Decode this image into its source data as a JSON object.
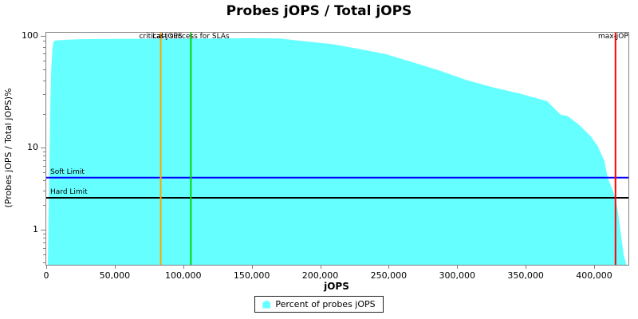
{
  "chart_data": {
    "type": "area",
    "title": "Probes jOPS / Total jOPS",
    "xlabel": "jOPS",
    "ylabel": "(Probes jOPS / Total jOPS)%",
    "x_axis": {
      "min": 0,
      "max": 424000,
      "scale": "linear",
      "ticks": [
        {
          "value": 0,
          "label": "0"
        },
        {
          "value": 50000,
          "label": "50,000"
        },
        {
          "value": 100000,
          "label": "100,000"
        },
        {
          "value": 150000,
          "label": "150,000"
        },
        {
          "value": 200000,
          "label": "200,000"
        },
        {
          "value": 250000,
          "label": "250,000"
        },
        {
          "value": 300000,
          "label": "300,000"
        },
        {
          "value": 350000,
          "label": "350,000"
        },
        {
          "value": 400000,
          "label": "400,000"
        }
      ]
    },
    "y_axis": {
      "min": 0.38,
      "max": 110,
      "scale": "log",
      "ticks": [
        {
          "value": 100,
          "label": "100"
        },
        {
          "value": 10,
          "label": "10"
        },
        {
          "value": 1,
          "label": "1"
        }
      ],
      "minor_ticks": [
        90,
        80,
        70,
        60,
        50,
        40,
        30,
        20,
        9,
        8,
        7,
        6,
        5,
        4,
        3,
        2,
        0.9,
        0.8,
        0.7,
        0.6,
        0.5,
        0.4
      ]
    },
    "series": [
      {
        "name": "Percent of probes jOPS",
        "color": "#66FFFF",
        "points": [
          [
            600,
            0.4
          ],
          [
            1200,
            2
          ],
          [
            1800,
            8
          ],
          [
            2400,
            25
          ],
          [
            3000,
            50
          ],
          [
            3800,
            75
          ],
          [
            4600,
            90
          ],
          [
            6000,
            92.5
          ],
          [
            15000,
            94
          ],
          [
            25000,
            95
          ],
          [
            50000,
            95.5
          ],
          [
            83000,
            96
          ],
          [
            105000,
            96.5
          ],
          [
            125000,
            96.5
          ],
          [
            150000,
            97
          ],
          [
            170000,
            96.5
          ],
          [
            188000,
            91
          ],
          [
            208000,
            86
          ],
          [
            227000,
            78
          ],
          [
            247000,
            70
          ],
          [
            267000,
            59
          ],
          [
            286000,
            50
          ],
          [
            306000,
            41
          ],
          [
            326000,
            35
          ],
          [
            345000,
            31
          ],
          [
            365000,
            26.5
          ],
          [
            370000,
            23
          ],
          [
            375000,
            20
          ],
          [
            380000,
            19.5
          ],
          [
            389000,
            16
          ],
          [
            397000,
            12.8
          ],
          [
            402000,
            10.5
          ],
          [
            407000,
            7
          ],
          [
            409300,
            4.4
          ],
          [
            412000,
            3.4
          ],
          [
            415000,
            2.5
          ],
          [
            417000,
            1.6
          ],
          [
            419000,
            0.9
          ],
          [
            421000,
            0.5
          ],
          [
            423000,
            0.38
          ]
        ]
      }
    ],
    "markers": {
      "vertical": [
        {
          "label": "critical-jOPS",
          "value": 83000,
          "color": "#FFA500"
        },
        {
          "label": "Last success for SLAs",
          "value": 105000,
          "color": "#00D900"
        },
        {
          "label": "max-jOPS",
          "value": 415000,
          "color": "#FF0000"
        }
      ],
      "horizontal": [
        {
          "label": "Soft Limit",
          "value": 4.4,
          "color": "#0000FF"
        },
        {
          "label": "Hard Limit",
          "value": 2.5,
          "color": "#000000"
        }
      ]
    },
    "legend": {
      "label": "Percent of probes jOPS",
      "position": "bottom-center",
      "swatch_color": "#66FFFF"
    },
    "grid": false
  }
}
